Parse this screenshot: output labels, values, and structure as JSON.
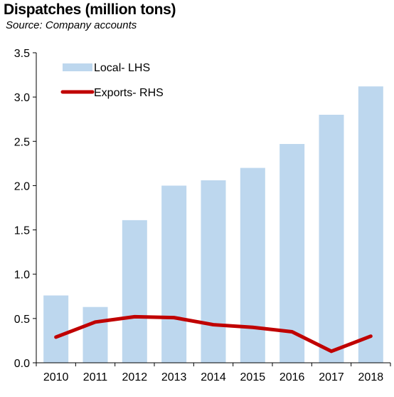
{
  "chart_data": {
    "type": "bar",
    "title": "Dispatches (million tons)",
    "subtitle": "Source: Company accounts",
    "categories": [
      "2010",
      "2011",
      "2012",
      "2013",
      "2014",
      "2015",
      "2016",
      "2017",
      "2018"
    ],
    "series": [
      {
        "name": "Local- LHS",
        "type": "bar",
        "color": "#bdd7ee",
        "values": [
          0.76,
          0.63,
          1.61,
          2.0,
          2.06,
          2.2,
          2.47,
          2.8,
          3.12
        ]
      },
      {
        "name": "Exports- RHS",
        "type": "line",
        "color": "#c00000",
        "values": [
          0.29,
          0.46,
          0.52,
          0.51,
          0.43,
          0.4,
          0.35,
          0.13,
          0.3
        ]
      }
    ],
    "ylim": [
      0,
      3.5
    ],
    "yticks": [
      "0.0",
      "0.5",
      "1.0",
      "1.5",
      "2.0",
      "2.5",
      "3.0",
      "3.5"
    ],
    "grid": false,
    "legend": "top-left"
  }
}
